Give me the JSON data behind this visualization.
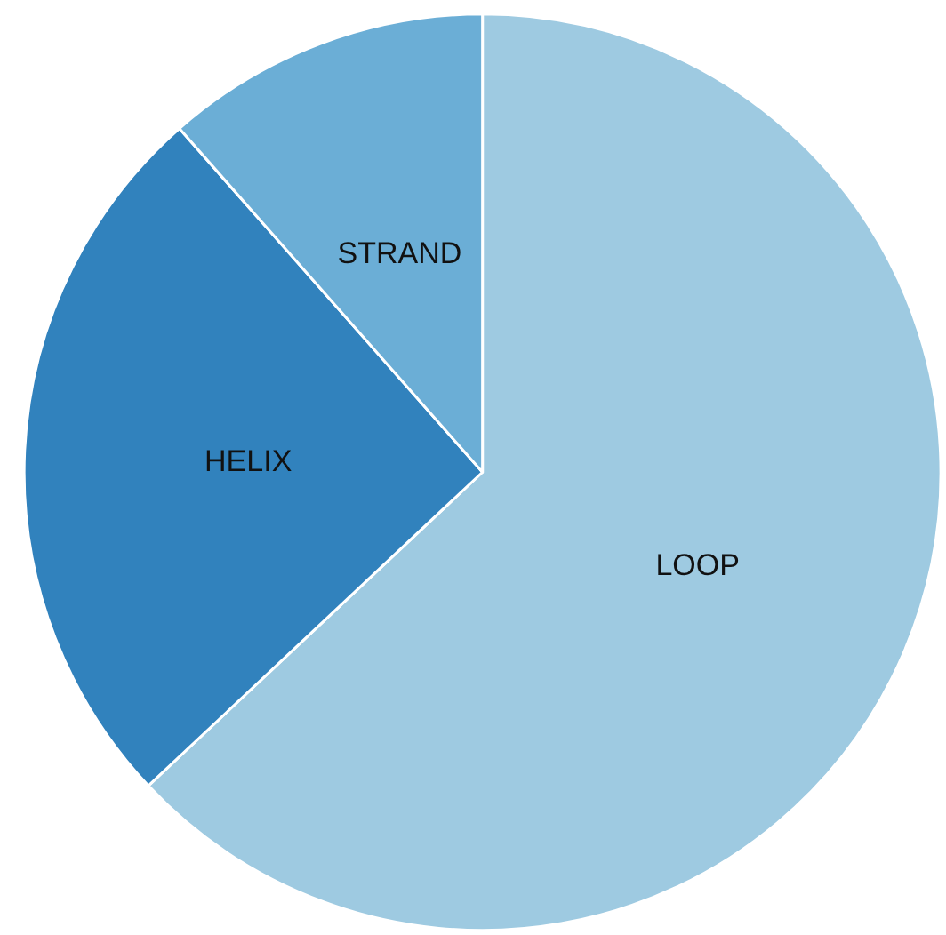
{
  "chart_data": {
    "type": "pie",
    "categories": [
      "LOOP",
      "HELIX",
      "STRAND"
    ],
    "values": [
      63,
      25.5,
      11.5
    ],
    "colors": [
      "#9ecae1",
      "#3182bd",
      "#6baed6"
    ],
    "legend": false
  }
}
